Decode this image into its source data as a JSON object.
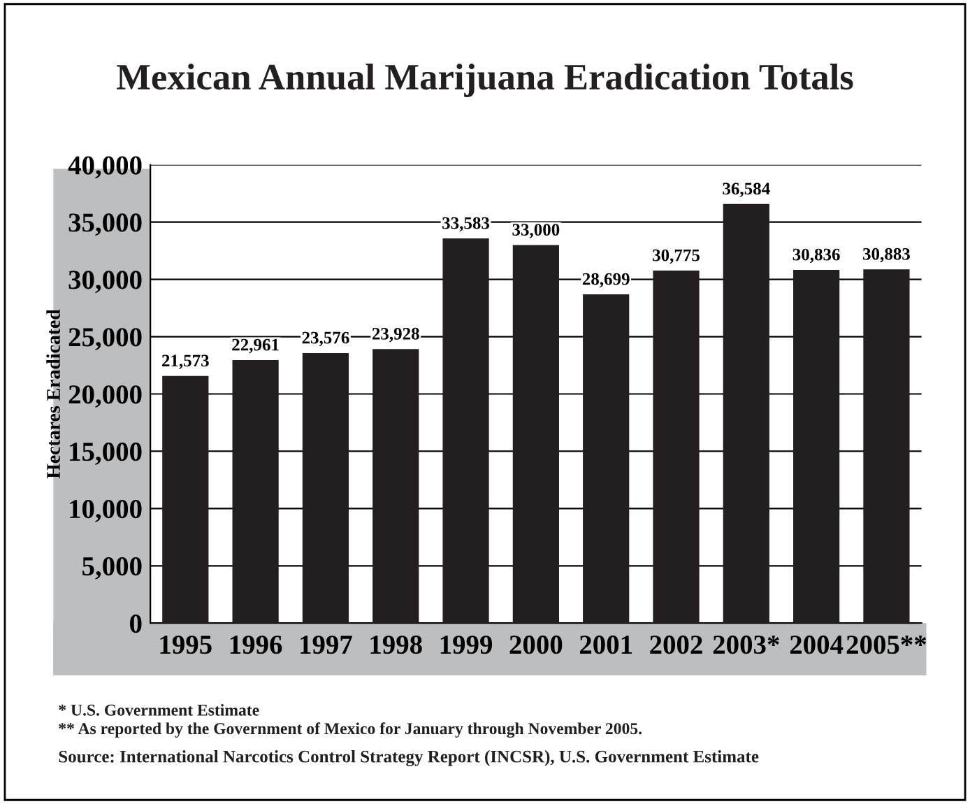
{
  "chart_data": {
    "type": "bar",
    "title": "Mexican Annual Marijuana Eradication Totals",
    "ylabel": "Hectares Eradicated",
    "categories": [
      "1995",
      "1996",
      "1997",
      "1998",
      "1999",
      "2000",
      "2001",
      "2002",
      "2003*",
      "2004",
      "2005**"
    ],
    "values": [
      21573,
      22961,
      23576,
      23928,
      33583,
      33000,
      28699,
      30775,
      36584,
      30836,
      30883
    ],
    "value_labels": [
      "21,573",
      "22,961",
      "23,576",
      "23,928",
      "33,583",
      "33,000",
      "28,699",
      "30,775",
      "36,584",
      "30,836",
      "30,883"
    ],
    "color": "#231f20",
    "ylim": [
      0,
      40000
    ],
    "yticks": [
      0,
      {
        "value": 5000,
        "label": "5,000"
      },
      {
        "value": 10000,
        "label": "10,000"
      },
      {
        "value": 15000,
        "label": "15,000"
      },
      {
        "value": 20000,
        "label": "20,000"
      },
      {
        "value": 25000,
        "label": "25,000"
      },
      {
        "value": 30000,
        "label": "30,000"
      },
      {
        "value": 35000,
        "label": "35,000"
      },
      {
        "value": 40000,
        "label": "40,000"
      }
    ],
    "grid": "y",
    "annotations": [
      "* U.S. Government Estimate",
      "** As reported by the Government of Mexico for January through November 2005.",
      "Source: International Narcotics Control Strategy Report (INCSR), U.S. Government Estimate"
    ]
  }
}
